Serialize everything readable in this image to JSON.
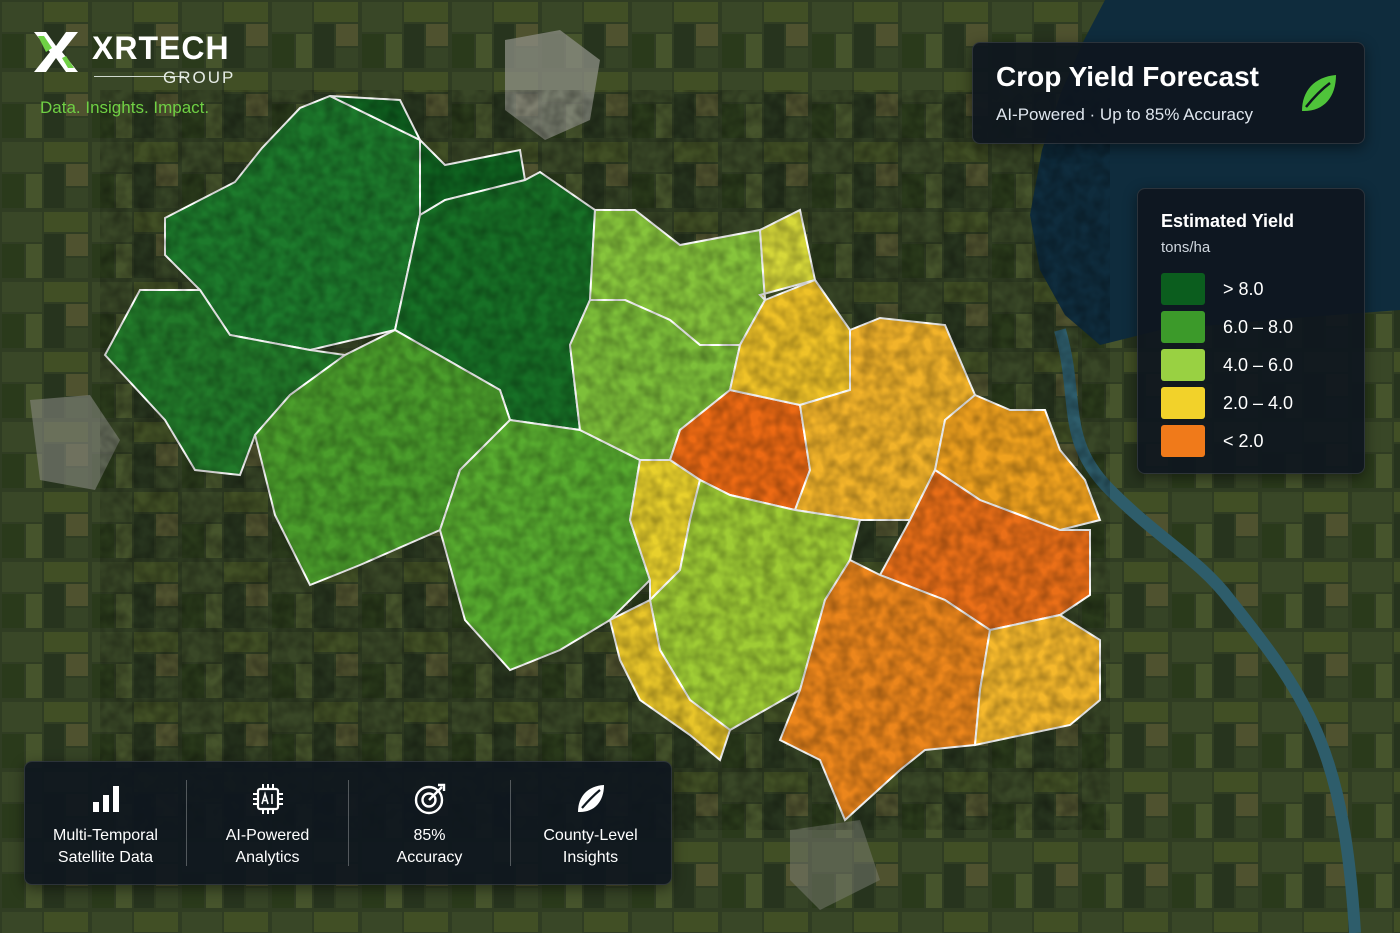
{
  "brand": {
    "name": "XRTECH",
    "sub": "GROUP",
    "tagline": "Data. Insights. Impact."
  },
  "title_card": {
    "title": "Crop Yield Forecast",
    "subtitle": "AI-Powered · Up to 85% Accuracy",
    "icon": "leaf-icon"
  },
  "legend": {
    "title": "Estimated Yield",
    "unit": "tons/ha",
    "items": [
      {
        "label": "> 8.0",
        "color": "#0b5d1e"
      },
      {
        "label": "6.0 – 8.0",
        "color": "#3c9a2a"
      },
      {
        "label": "4.0 – 6.0",
        "color": "#99d142"
      },
      {
        "label": "2.0 – 4.0",
        "color": "#f2d22a"
      },
      {
        "label": "< 2.0",
        "color": "#f07a1a"
      }
    ]
  },
  "features": [
    {
      "line1": "Multi-Temporal",
      "line2": "Satellite Data",
      "icon": "bar-chart-icon"
    },
    {
      "line1": "AI-Powered",
      "line2": "Analytics",
      "icon": "ai-chip-icon"
    },
    {
      "line1": "85%",
      "line2": "Accuracy",
      "icon": "target-icon"
    },
    {
      "line1": "County-Level",
      "line2": "Insights",
      "icon": "leaf-icon"
    }
  ],
  "map": {
    "background": "satellite-imagery",
    "water_color": "#0f2c3d",
    "river_color": "#2e5d6b",
    "border_color": "#ffffff"
  }
}
